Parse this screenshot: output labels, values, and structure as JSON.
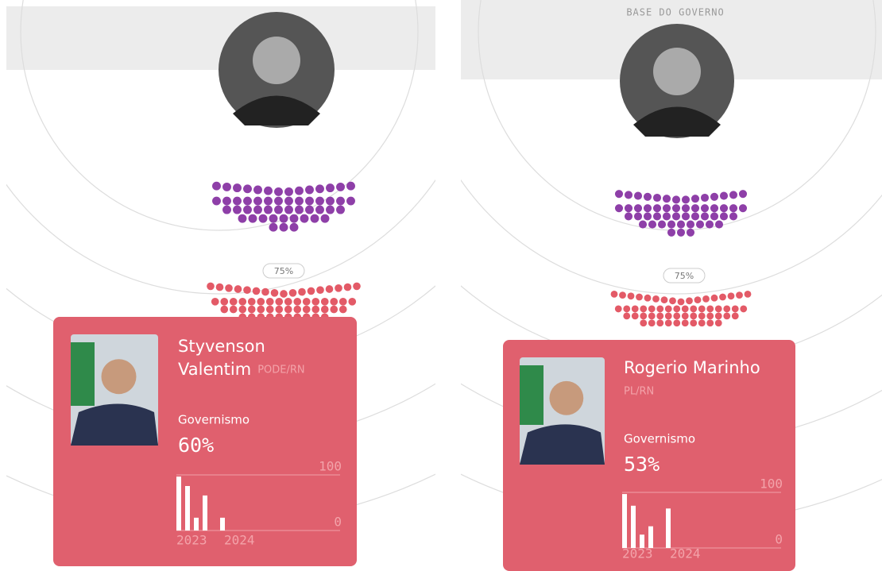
{
  "panels": [
    {
      "threshold_label": "75%",
      "senator": {
        "name_lines": [
          "Styvenson",
          "Valentim"
        ],
        "party": "PODE/RN"
      },
      "metric_label": "Governismo",
      "metric_value": "60%",
      "chart": {
        "type": "bar",
        "ylim": [
          0,
          100
        ],
        "yticks": [
          0,
          100
        ],
        "values": [
          97,
          80,
          23,
          63,
          null,
          23
        ],
        "x_labels": [
          "2023",
          "2024"
        ]
      }
    },
    {
      "header": "BASE DO GOVERNO",
      "threshold_label": "75%",
      "senator": {
        "name_lines": [
          "Rogerio Marinho"
        ],
        "party": "PL/RN"
      },
      "metric_label": "Governismo",
      "metric_value": "53%",
      "chart": {
        "type": "bar",
        "ylim": [
          0,
          100
        ],
        "yticks": [
          0,
          100
        ],
        "values": [
          97,
          76,
          24,
          39,
          null,
          71
        ],
        "x_labels": [
          "2023",
          "2024"
        ]
      }
    }
  ]
}
